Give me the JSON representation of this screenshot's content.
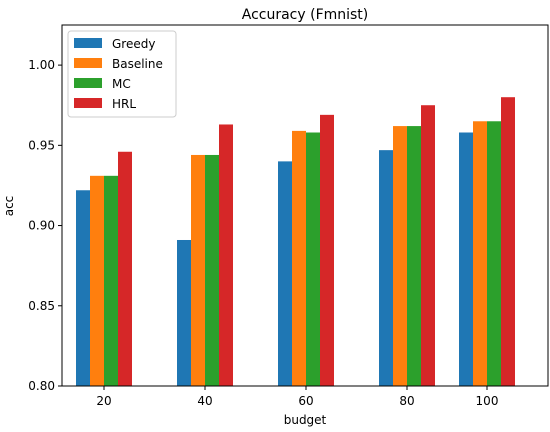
{
  "chart_data": {
    "type": "bar",
    "title": "Accuracy (Fmnist)",
    "xlabel": "budget",
    "ylabel": "acc",
    "categories": [
      "20",
      "40",
      "60",
      "80",
      "100"
    ],
    "ylim": [
      0.8,
      1.025
    ],
    "yticks": [
      "0.80",
      "0.85",
      "0.90",
      "0.95",
      "1.00"
    ],
    "grid": false,
    "legend_position": "top-left",
    "series": [
      {
        "name": "Greedy",
        "color": "#1f77b4",
        "values": [
          0.922,
          0.891,
          0.94,
          0.947,
          0.958
        ]
      },
      {
        "name": "Baseline",
        "color": "#ff7f0e",
        "values": [
          0.931,
          0.944,
          0.959,
          0.962,
          0.965
        ]
      },
      {
        "name": "MC",
        "color": "#2ca02c",
        "values": [
          0.931,
          0.944,
          0.958,
          0.962,
          0.965
        ]
      },
      {
        "name": "HRL",
        "color": "#d62728",
        "values": [
          0.946,
          0.963,
          0.969,
          0.975,
          0.98
        ]
      }
    ]
  }
}
